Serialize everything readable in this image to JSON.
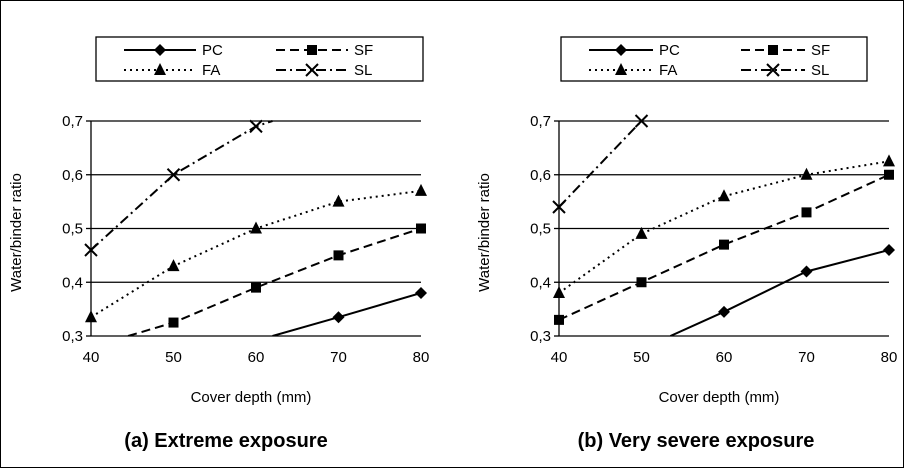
{
  "chart_data": [
    {
      "type": "line",
      "title": "(a) Extreme exposure",
      "xlabel": "Cover depth (mm)",
      "ylabel": "Water/binder ratio",
      "xlim": [
        40,
        80
      ],
      "ylim": [
        0.3,
        0.7
      ],
      "xticks": [
        "40",
        "50",
        "60",
        "70",
        "80"
      ],
      "yticks": [
        "0,3",
        "0,4",
        "0,5",
        "0,6",
        "0,7"
      ],
      "grid": "horizontal",
      "legend_position": "top",
      "series": [
        {
          "name": "PC",
          "marker": "diamond",
          "dash": "solid",
          "x": [
            62,
            70,
            80
          ],
          "y": [
            0.3,
            0.335,
            0.38
          ],
          "marked": [
            70,
            80
          ]
        },
        {
          "name": "SF",
          "marker": "square",
          "dash": "dashed",
          "x": [
            44.5,
            50,
            60,
            70,
            80
          ],
          "y": [
            0.3,
            0.325,
            0.39,
            0.45,
            0.5
          ],
          "marked": [
            50,
            60,
            70,
            80
          ]
        },
        {
          "name": "FA",
          "marker": "triangle",
          "dash": "dotted",
          "x": [
            40,
            50,
            60,
            70,
            80
          ],
          "y": [
            0.335,
            0.43,
            0.5,
            0.55,
            0.57
          ],
          "marked": [
            40,
            50,
            60,
            70,
            80
          ]
        },
        {
          "name": "SL",
          "marker": "x",
          "dash": "dashdot",
          "x": [
            40,
            50,
            60,
            62
          ],
          "y": [
            0.46,
            0.6,
            0.69,
            0.7
          ],
          "marked": [
            40,
            50,
            60
          ]
        }
      ]
    },
    {
      "type": "line",
      "title": "(b) Very severe exposure",
      "xlabel": "Cover depth (mm)",
      "ylabel": "Water/binder ratio",
      "xlim": [
        40,
        80
      ],
      "ylim": [
        0.3,
        0.7
      ],
      "xticks": [
        "40",
        "50",
        "60",
        "70",
        "80"
      ],
      "yticks": [
        "0,3",
        "0,4",
        "0,5",
        "0,6",
        "0,7"
      ],
      "grid": "horizontal",
      "legend_position": "top",
      "series": [
        {
          "name": "PC",
          "marker": "diamond",
          "dash": "solid",
          "x": [
            53.5,
            60,
            70,
            80
          ],
          "y": [
            0.3,
            0.345,
            0.42,
            0.46
          ],
          "marked": [
            60,
            70,
            80
          ]
        },
        {
          "name": "SF",
          "marker": "square",
          "dash": "dashed",
          "x": [
            40,
            50,
            60,
            70,
            80
          ],
          "y": [
            0.33,
            0.4,
            0.47,
            0.53,
            0.6
          ],
          "marked": [
            40,
            50,
            60,
            70,
            80
          ]
        },
        {
          "name": "FA",
          "marker": "triangle",
          "dash": "dotted",
          "x": [
            40,
            50,
            60,
            70,
            80
          ],
          "y": [
            0.38,
            0.49,
            0.56,
            0.6,
            0.625
          ],
          "marked": [
            40,
            50,
            60,
            70,
            80
          ]
        },
        {
          "name": "SL",
          "marker": "x",
          "dash": "dashdot",
          "x": [
            40,
            50
          ],
          "y": [
            0.54,
            0.7
          ],
          "marked": [
            40,
            50
          ]
        }
      ]
    }
  ]
}
